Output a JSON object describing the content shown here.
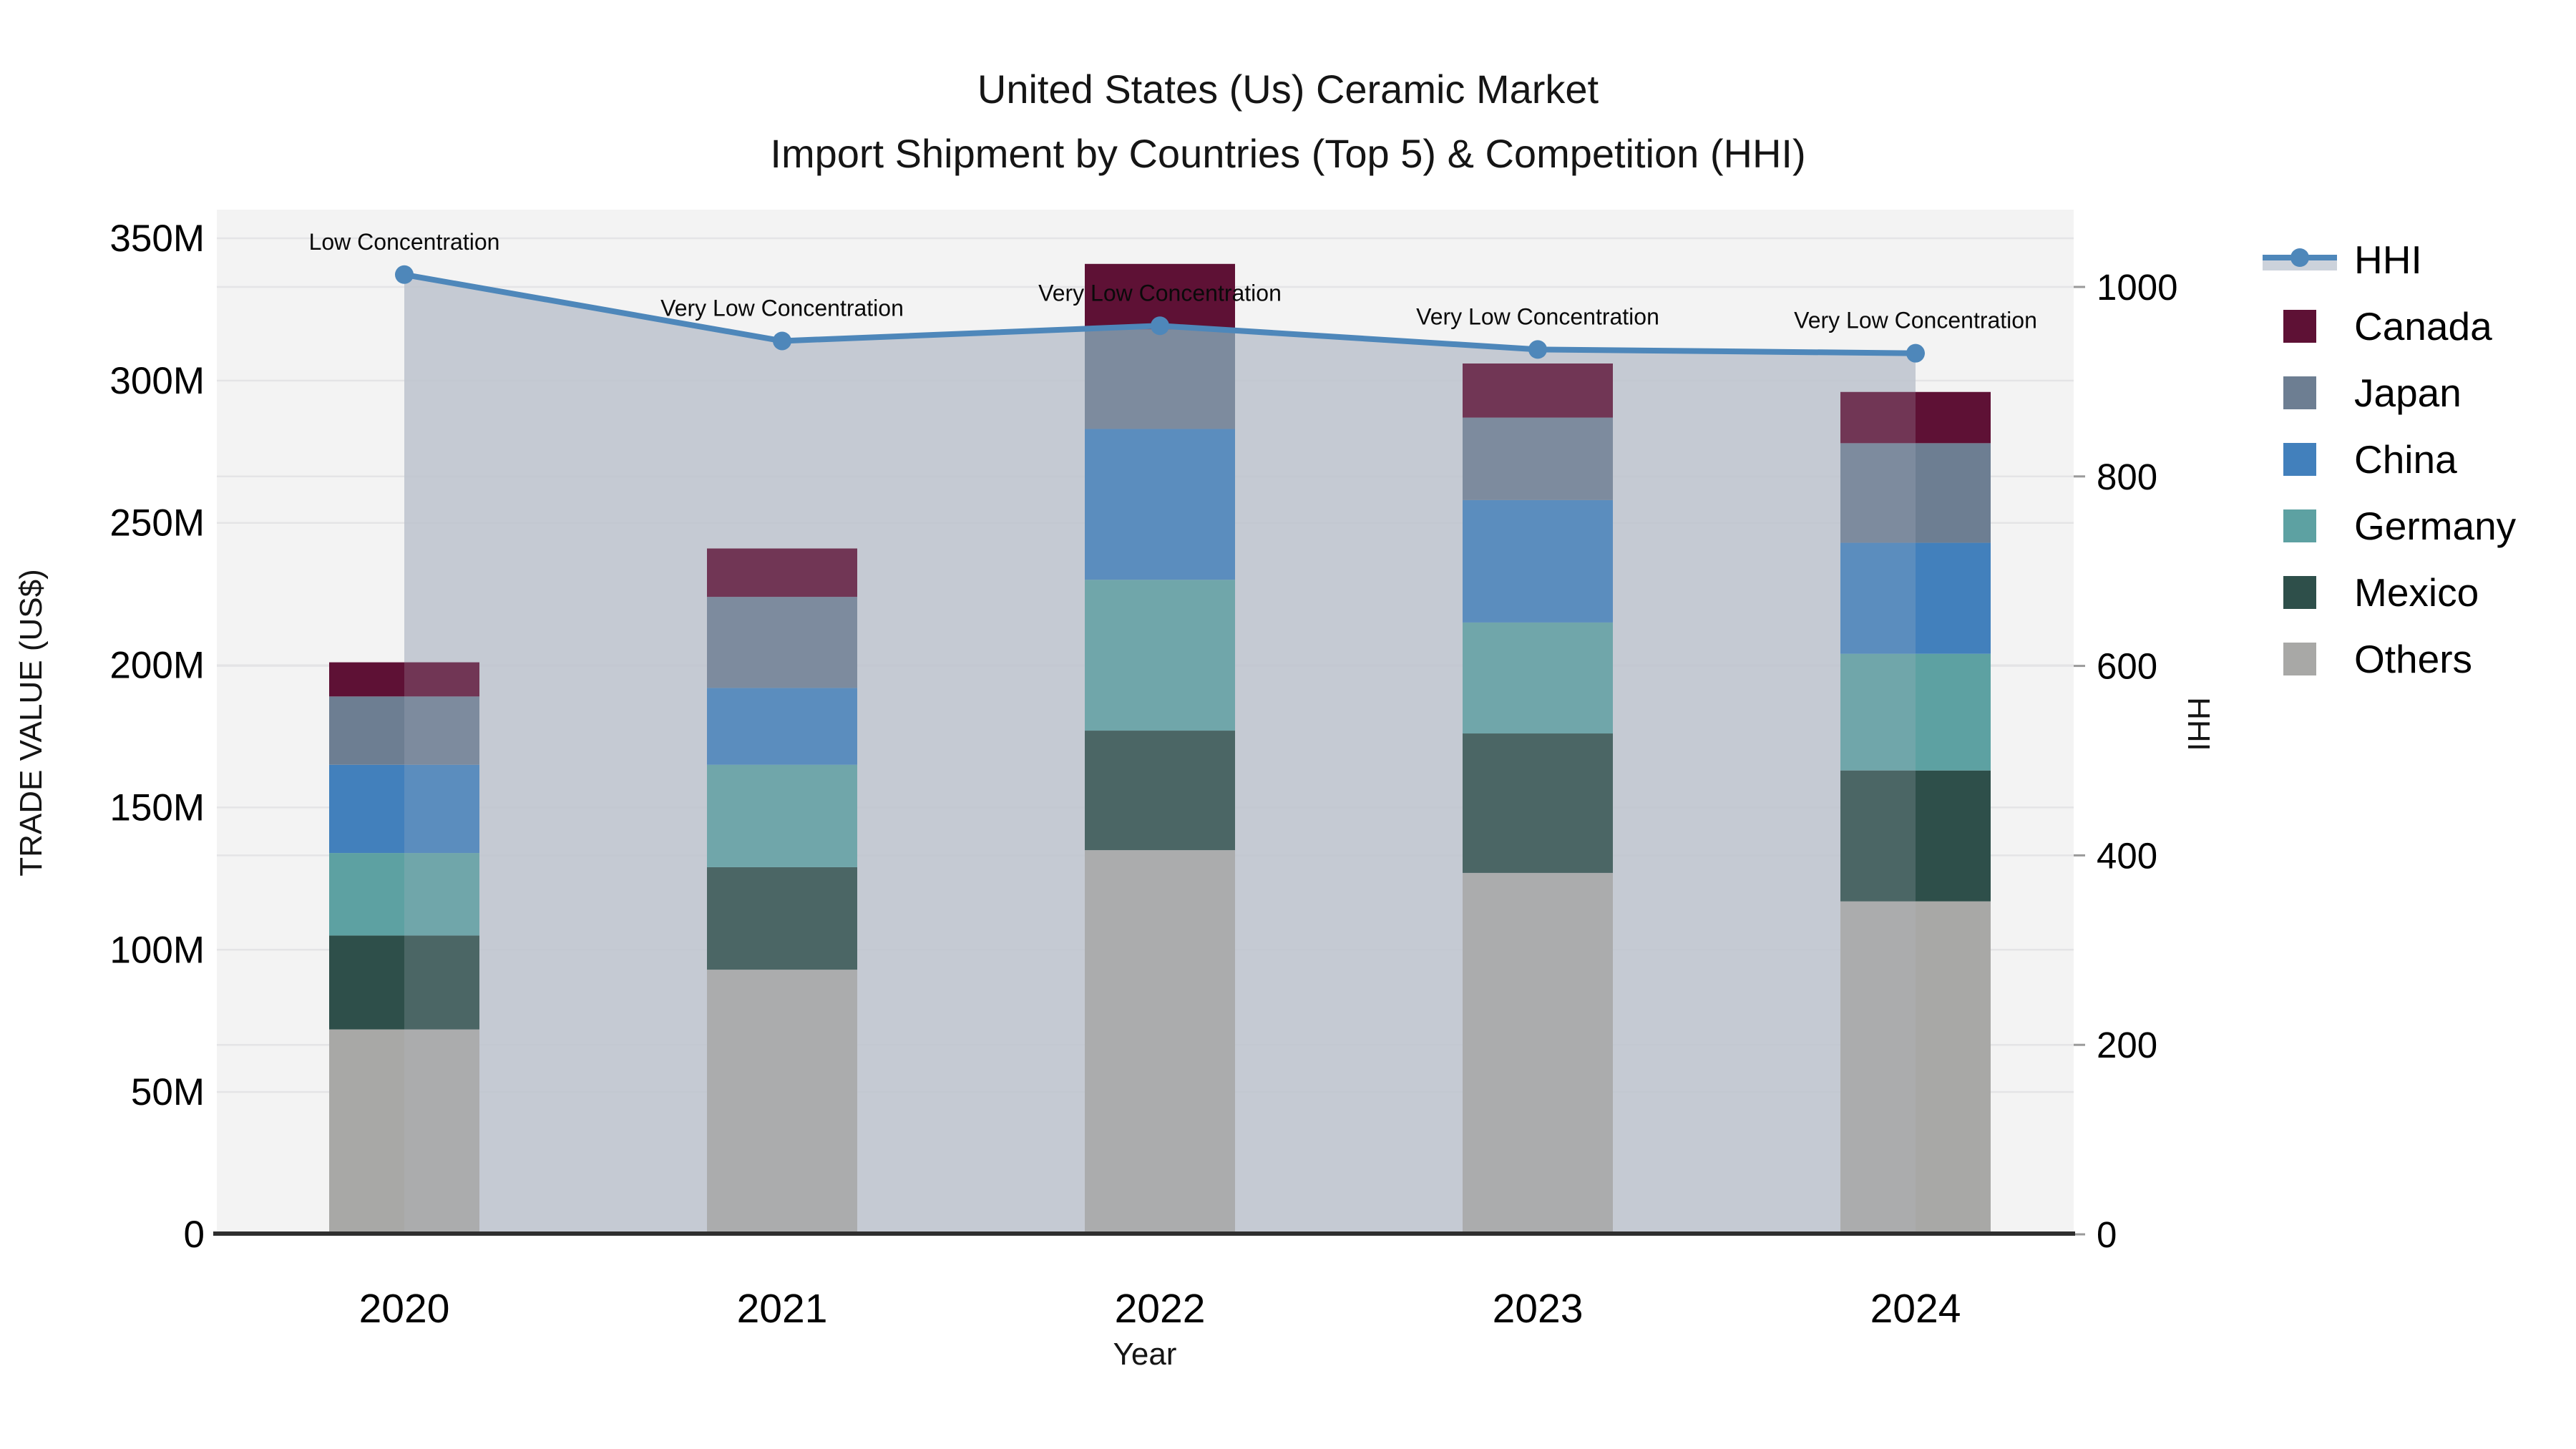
{
  "title": {
    "line1": "United States (Us) Ceramic Market",
    "line2": "Import Shipment by Countries (Top 5) & Competition (HHI)"
  },
  "axes": {
    "x_title": "Year",
    "y_left_title": "TRADE VALUE (US$)",
    "y_right_title": "HHI",
    "y_left_tick_labels": [
      "0",
      "50M",
      "100M",
      "150M",
      "200M",
      "250M",
      "300M",
      "350M"
    ],
    "y_left_tick_values": [
      0,
      50,
      100,
      150,
      200,
      250,
      300,
      350
    ],
    "y_right_tick_labels": [
      "0",
      "200",
      "400",
      "600",
      "800",
      "1000"
    ],
    "y_right_tick_values": [
      0,
      200,
      400,
      600,
      800,
      1000
    ]
  },
  "chart_data": {
    "type": "stacked-bar+line",
    "categories": [
      "2020",
      "2021",
      "2022",
      "2023",
      "2024"
    ],
    "title": "United States (Us) Ceramic Market — Import Shipment by Countries (Top 5) & Competition (HHI)",
    "xlabel": "Year",
    "ylabel_left": "TRADE VALUE (US$)",
    "ylabel_right": "HHI",
    "y_left_unit": "M US$",
    "y_left_range": [
      0,
      350
    ],
    "y_right_range": [
      0,
      1000
    ],
    "grid": true,
    "legend_position": "outside-top-right",
    "bar_stack_order_bottom_to_top": [
      "Others",
      "Mexico",
      "Germany",
      "China",
      "Japan",
      "Canada"
    ],
    "series": [
      {
        "name": "Others",
        "color": "#a8a8a6",
        "values": [
          72,
          93,
          135,
          127,
          117
        ]
      },
      {
        "name": "Mexico",
        "color": "#2e4f4a",
        "values": [
          33,
          36,
          42,
          49,
          46
        ]
      },
      {
        "name": "Germany",
        "color": "#5da1a2",
        "values": [
          29,
          36,
          53,
          39,
          41
        ]
      },
      {
        "name": "China",
        "color": "#4280bc",
        "values": [
          31,
          27,
          53,
          43,
          39
        ]
      },
      {
        "name": "Japan",
        "color": "#6d7e92",
        "values": [
          24,
          32,
          35,
          29,
          35
        ]
      },
      {
        "name": "Canada",
        "color": "#5e1135",
        "values": [
          12,
          17,
          23,
          19,
          18
        ]
      }
    ],
    "bar_totals_m": [
      201,
      241,
      341,
      306,
      296
    ],
    "line_series": {
      "name": "HHI",
      "color": "#4e87ba",
      "marker": "circle",
      "area_fill": true,
      "values": [
        1013,
        943,
        959,
        934,
        930
      ]
    },
    "annotations": [
      {
        "category": "2020",
        "text": "Low Concentration"
      },
      {
        "category": "2021",
        "text": "Very Low Concentration"
      },
      {
        "category": "2022",
        "text": "Very Low Concentration"
      },
      {
        "category": "2023",
        "text": "Very Low Concentration"
      },
      {
        "category": "2024",
        "text": "Very Low Concentration"
      }
    ]
  },
  "legend": {
    "items": [
      {
        "label": "HHI",
        "type": "line",
        "color": "#4e87ba"
      },
      {
        "label": "Canada",
        "type": "swatch",
        "color": "#5e1135"
      },
      {
        "label": "Japan",
        "type": "swatch",
        "color": "#6d7e92"
      },
      {
        "label": "China",
        "type": "swatch",
        "color": "#4280bc"
      },
      {
        "label": "Germany",
        "type": "swatch",
        "color": "#5da1a2"
      },
      {
        "label": "Mexico",
        "type": "swatch",
        "color": "#2e4f4a"
      },
      {
        "label": "Others",
        "type": "swatch",
        "color": "#a8a8a6"
      }
    ]
  },
  "colors": {
    "plot_background": "#f3f3f3",
    "gridline": "#e4e4e6",
    "area_under": "rgba(191,197,207,0.8)",
    "area_over": "rgba(180,188,202,0.22)",
    "axis_spine": "#2f2f2f",
    "tick_text": "#000000",
    "annotation_text": "#0a0a0a"
  }
}
